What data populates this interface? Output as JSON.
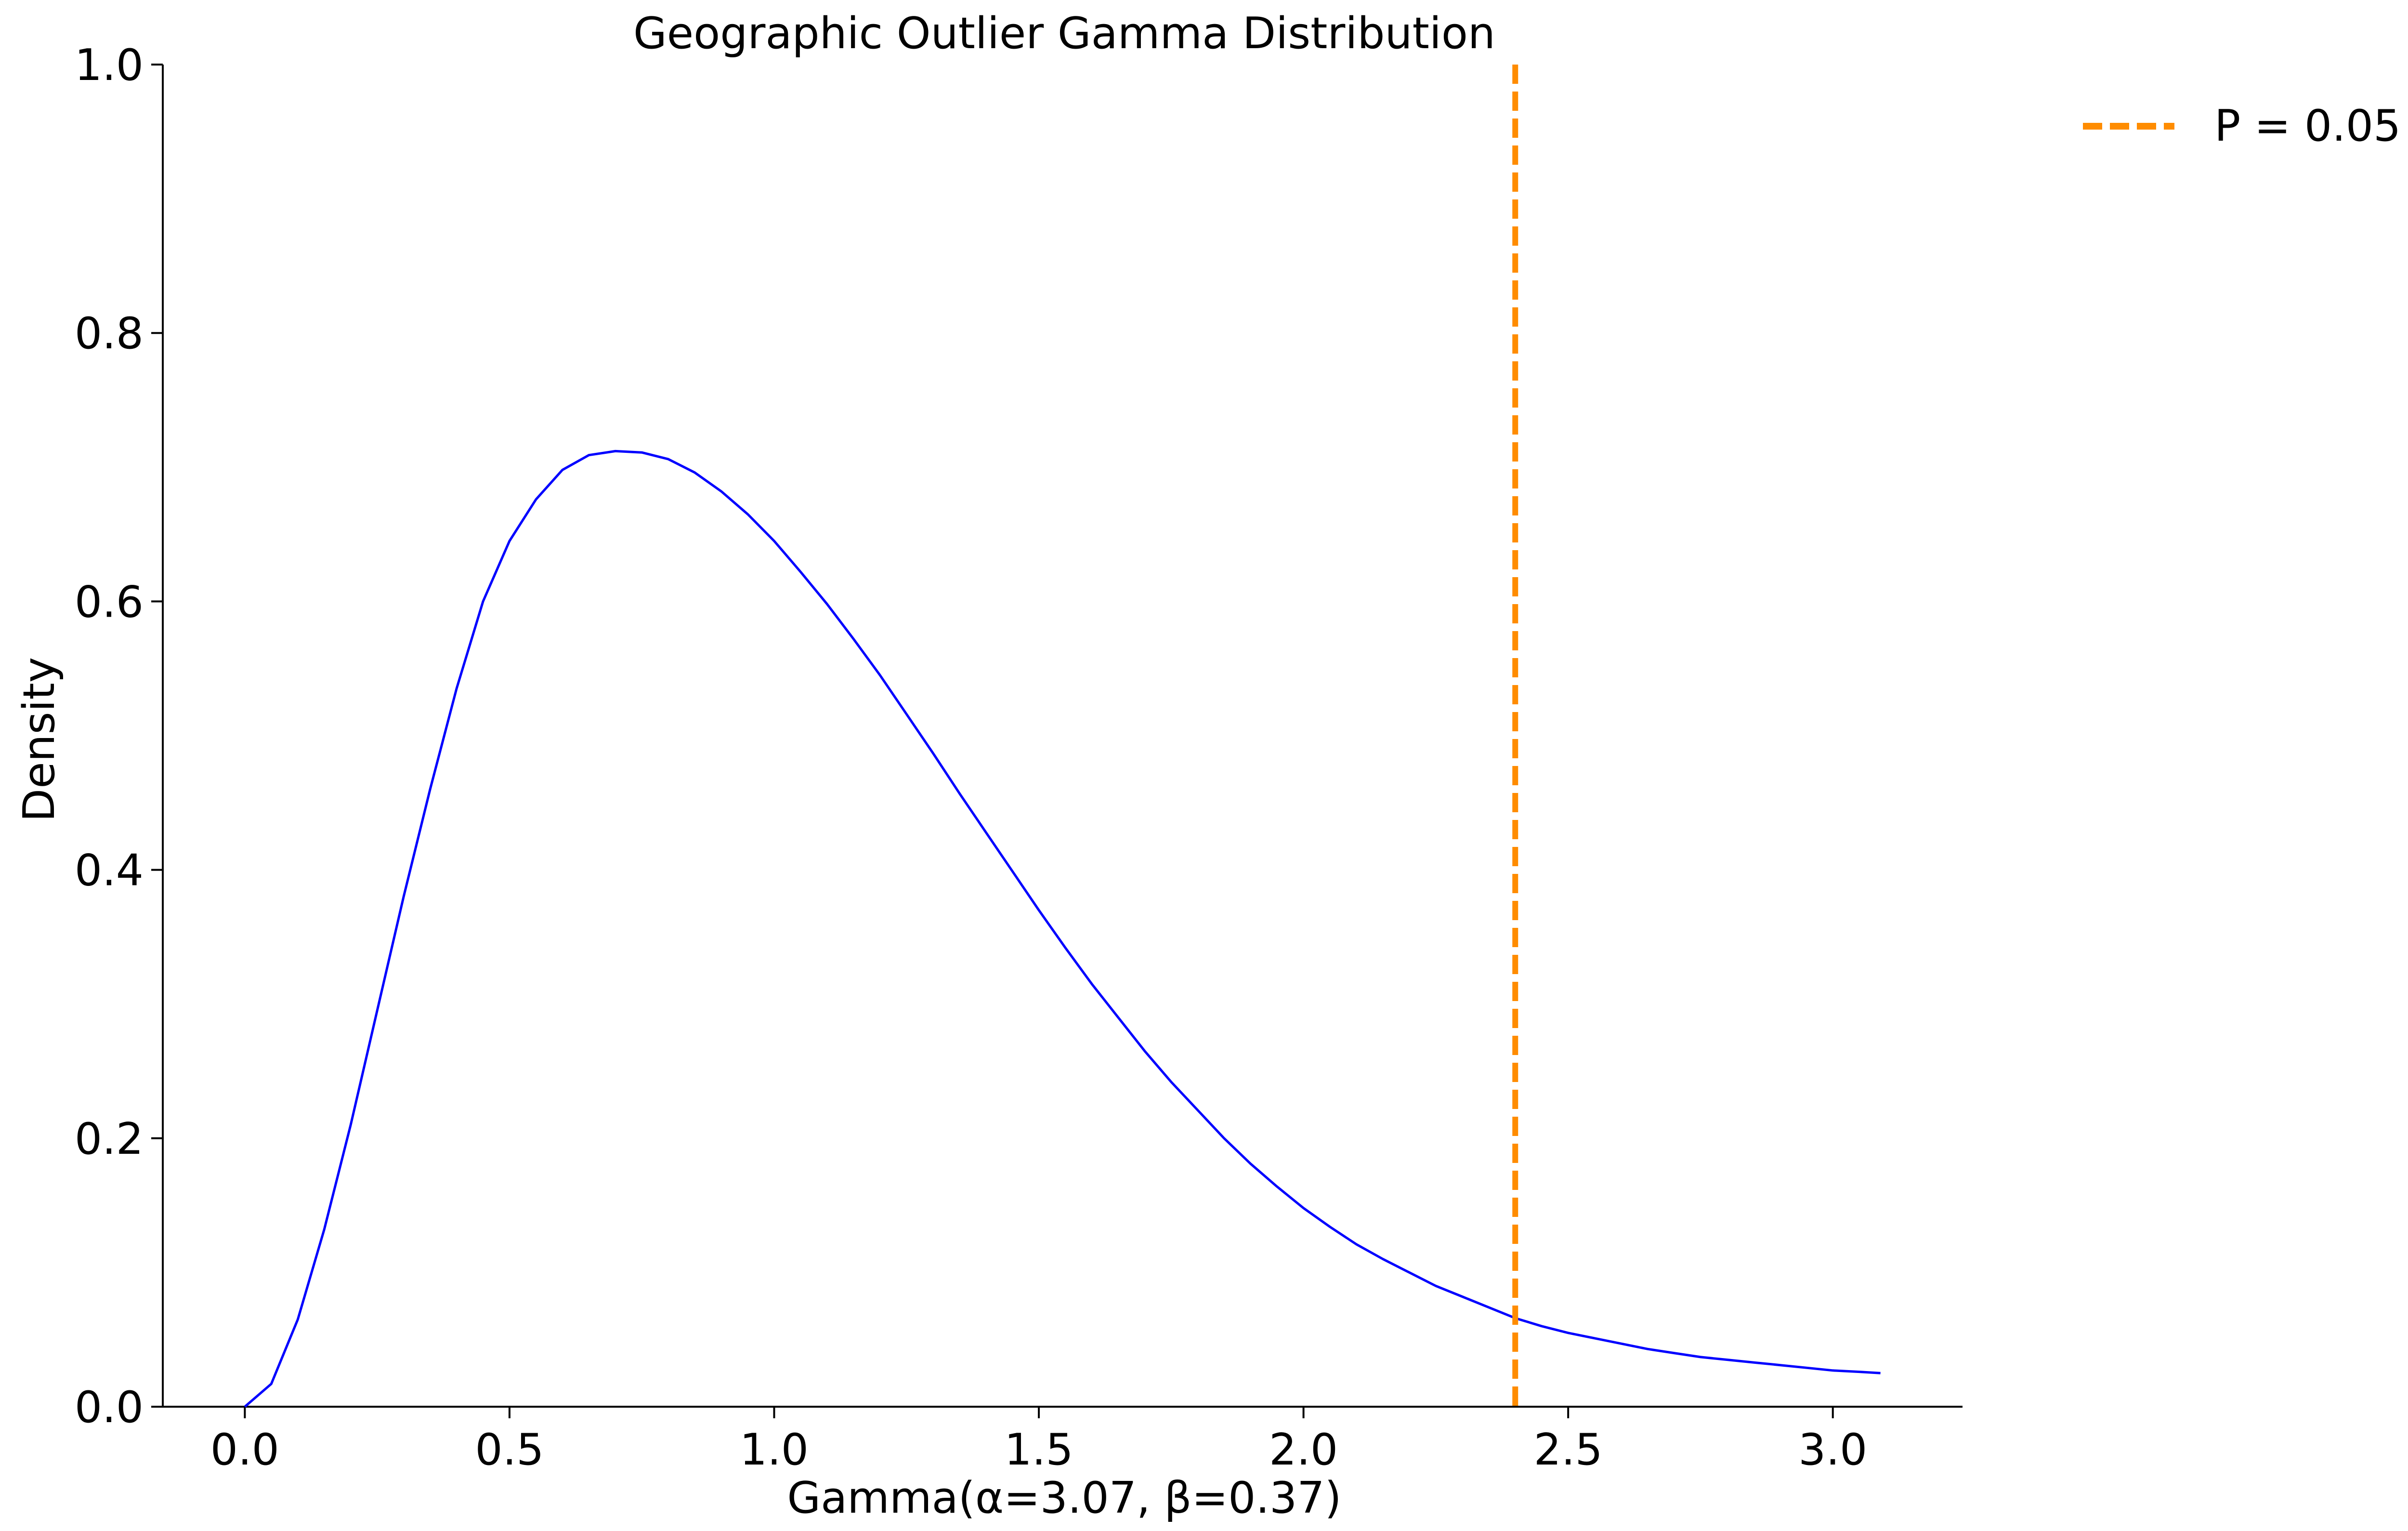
{
  "chart_data": {
    "type": "line",
    "title": "Geographic Outlier Gamma Distribution",
    "xlabel": "Gamma(α=3.07, β=0.37)",
    "ylabel": "Density",
    "xlim": [
      -0.155,
      3.245
    ],
    "ylim": [
      0.0,
      1.0
    ],
    "x_ticks": [
      0.0,
      0.5,
      1.0,
      1.5,
      2.0,
      2.5,
      3.0
    ],
    "x_tick_labels": [
      "0.0",
      "0.5",
      "1.0",
      "1.5",
      "2.0",
      "2.5",
      "3.0"
    ],
    "y_ticks": [
      0.0,
      0.2,
      0.4,
      0.6,
      0.8,
      1.0
    ],
    "y_tick_labels": [
      "0.0",
      "0.2",
      "0.4",
      "0.6",
      "0.8",
      "1.0"
    ],
    "grid": false,
    "legend_position": "outside-top-right",
    "series": [
      {
        "color": "#0000ff",
        "style": "solid",
        "x": [
          0.0,
          0.05,
          0.1,
          0.15,
          0.2,
          0.25,
          0.3,
          0.35,
          0.4,
          0.45,
          0.5,
          0.55,
          0.6,
          0.65,
          0.7,
          0.75,
          0.8,
          0.85,
          0.9,
          0.95,
          1.0,
          1.05,
          1.1,
          1.15,
          1.2,
          1.25,
          1.3,
          1.35,
          1.4,
          1.45,
          1.5,
          1.55,
          1.6,
          1.65,
          1.7,
          1.75,
          1.8,
          1.85,
          1.9,
          1.95,
          2.0,
          2.05,
          2.1,
          2.15,
          2.2,
          2.25,
          2.3,
          2.35,
          2.4,
          2.45,
          2.5,
          2.55,
          2.6,
          2.65,
          2.7,
          2.75,
          2.8,
          2.85,
          2.9,
          2.95,
          3.0,
          3.05,
          3.09
        ],
        "y": [
          0.0,
          0.017,
          0.065,
          0.132,
          0.21,
          0.295,
          0.38,
          0.46,
          0.535,
          0.6,
          0.645,
          0.676,
          0.698,
          0.709,
          0.712,
          0.711,
          0.706,
          0.696,
          0.682,
          0.665,
          0.645,
          0.622,
          0.598,
          0.572,
          0.545,
          0.516,
          0.487,
          0.457,
          0.428,
          0.399,
          0.37,
          0.342,
          0.315,
          0.29,
          0.265,
          0.242,
          0.221,
          0.2,
          0.181,
          0.164,
          0.148,
          0.134,
          0.121,
          0.11,
          0.1,
          0.09,
          0.082,
          0.074,
          0.066,
          0.06,
          0.055,
          0.051,
          0.047,
          0.043,
          0.04,
          0.037,
          0.035,
          0.033,
          0.031,
          0.029,
          0.027,
          0.026,
          0.025
        ]
      }
    ],
    "vlines": [
      {
        "name": "P = 0.05",
        "x": 2.4,
        "color": "#ff8c00",
        "style": "dashed"
      }
    ]
  }
}
